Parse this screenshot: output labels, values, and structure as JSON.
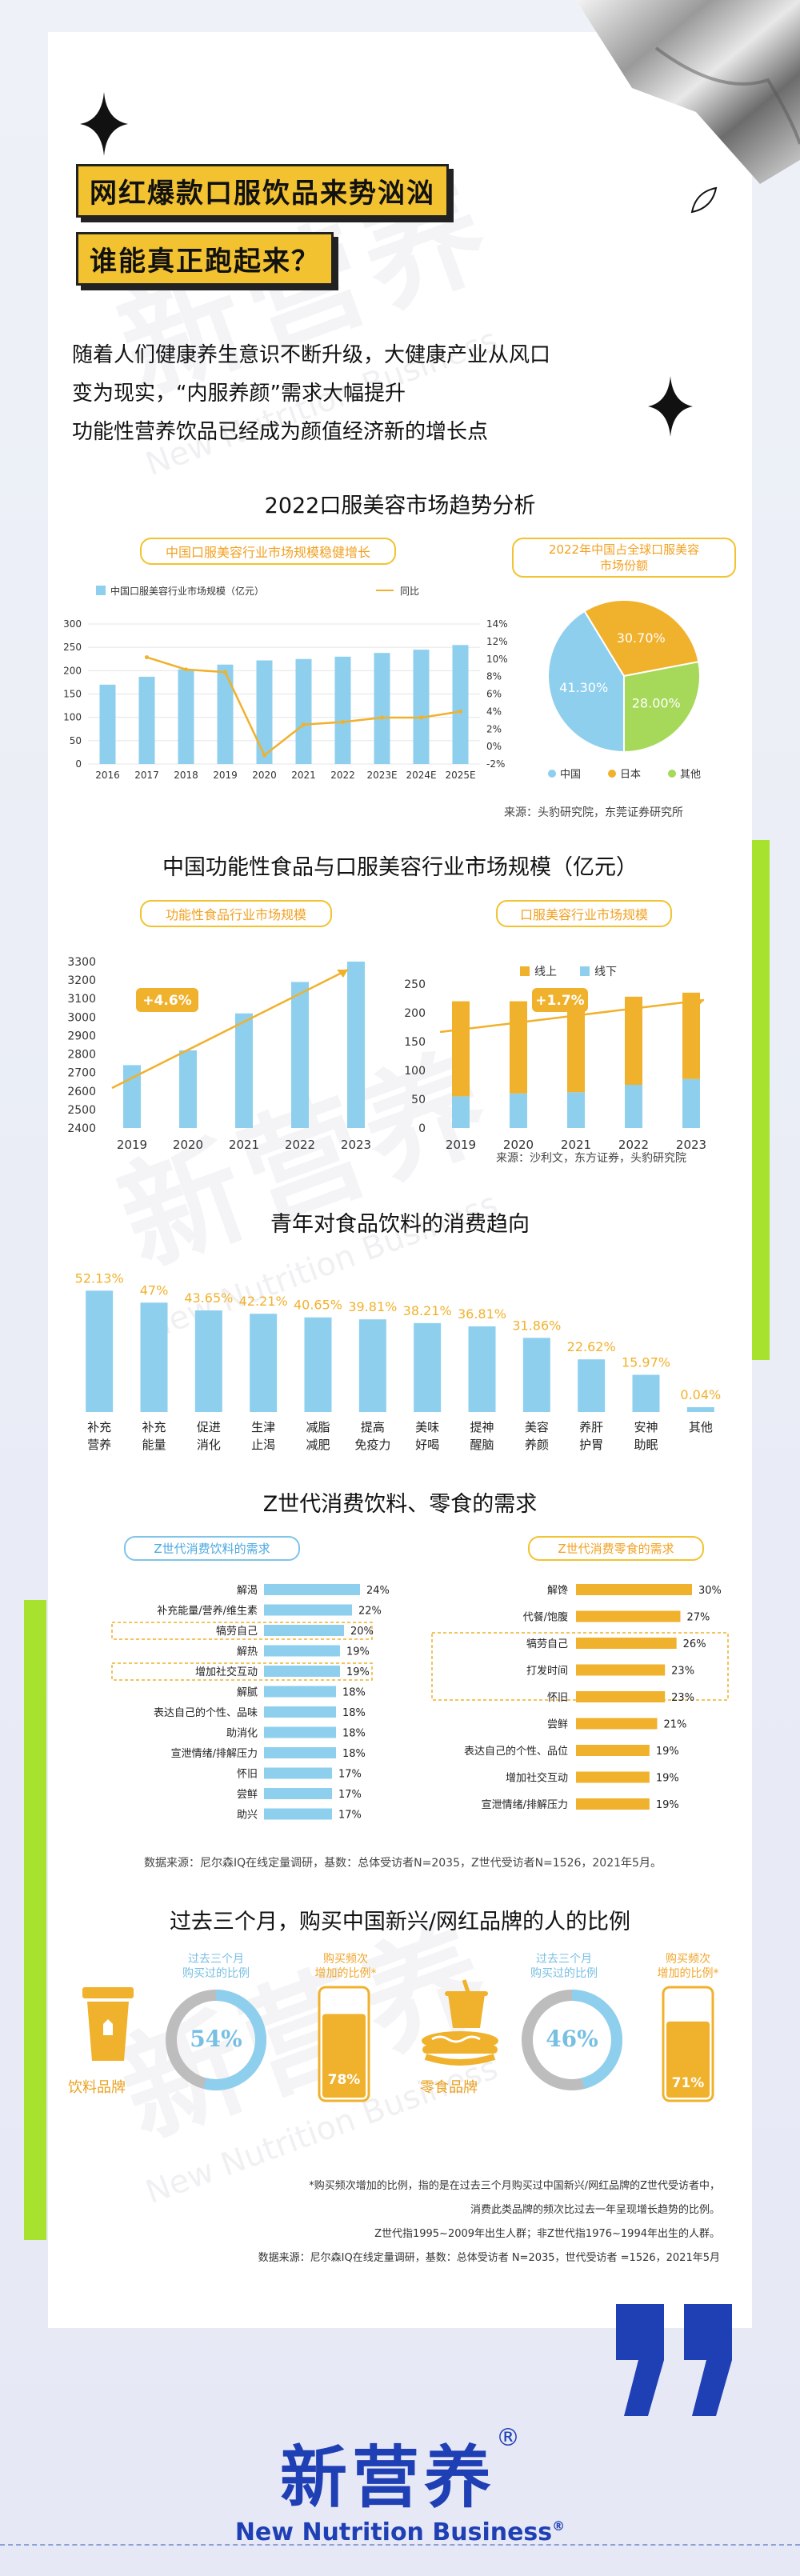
{
  "header": {
    "title_line1": "网红爆款口服饮品来势汹汹",
    "title_line2": "谁能真正跑起来？"
  },
  "intro": {
    "line1": "随着人们健康养生意识不断升级，大健康产业从风口",
    "line2": "变为现实，“内服养颜”需求大幅提升",
    "line3": "功能性营养饮品已经成为颜值经济新的增长点"
  },
  "section1": {
    "title": "2022口服美容市场趋势分析",
    "left_pill": "中国口服美容行业市场规模稳健增长",
    "right_pill_line1": "2022年中国占全球口服美容",
    "right_pill_line2": "市场份额",
    "source": "来源：头豹研究院，东莞证券研究所"
  },
  "section2": {
    "title": "中国功能性食品与口服美容行业市场规模（亿元）",
    "left_pill": "功能性食品行业市场规模",
    "right_pill": "口服美容行业市场规模",
    "left_growth": "+4.6%",
    "right_growth": "+1.7%",
    "source": "来源：沙利文，东方证券，头豹研究院"
  },
  "section3": {
    "title": "青年对食品饮料的消费趋向"
  },
  "section4": {
    "title": "Z世代消费饮料、零食的需求",
    "left_pill": "Z世代消费饮料的需求",
    "right_pill": "Z世代消费零食的需求",
    "source": "数据来源：尼尔森IQ在线定量调研，基数：总体受访者N=2035，Z世代受访者N=1526，2021年5月。"
  },
  "section5": {
    "title": "过去三个月，购买中国新兴/网红品牌的人的比例",
    "drink_label": "饮料品牌",
    "snack_label": "零食品牌",
    "bought_label_line1": "过去三个月",
    "bought_label_line2": "购买过的比例",
    "freq_label_line1": "购买频次",
    "freq_label_line2": "增加的比例*",
    "drink_bought": "54%",
    "drink_freq": "78%",
    "snack_bought": "46%",
    "snack_freq": "71%",
    "drink_bought_value": 54,
    "drink_freq_value": 78,
    "snack_bought_value": 46,
    "snack_freq_value": 71,
    "note1": "*购买频次增加的比例，指的是在过去三个月购买过中国新兴/网红品牌的Z世代受访者中，",
    "note2": "消费此类品牌的频次比过去一年呈现增长趋势的比例。",
    "note3": "Z世代指1995~2009年出生人群；非Z世代指1976~1994年出生的人群。",
    "note4": "数据来源：尼尔森IQ在线定量调研，基数：总体受访者 N=2035，世代受访者 =1526，2021年5月"
  },
  "brand": {
    "name": "新营养",
    "reg": "®",
    "en": "New Nutrition Business",
    "en_reg": "®",
    "watermark": "新营养",
    "watermark_en": "New Nutrition Business"
  },
  "colors": {
    "blue": "#8ecfee",
    "orange": "#f0b12c",
    "green": "#a6e22e",
    "gold_line": "#f0b12c",
    "brand_blue": "#1f3fb4"
  },
  "chart_data": [
    {
      "type": "bar",
      "title": "",
      "legend": [
        "中国口服美容行业市场规模（亿元）",
        "同比"
      ],
      "categories": [
        "2016",
        "2017",
        "2018",
        "2019",
        "2020",
        "2021",
        "2022",
        "2023E",
        "2024E",
        "2025E"
      ],
      "series": [
        {
          "name": "中国口服美容行业市场规模（亿元）",
          "type": "bar",
          "values": [
            170,
            187,
            203,
            213,
            222,
            225,
            230,
            238,
            245,
            255
          ]
        },
        {
          "name": "同比",
          "type": "line",
          "values": [
            null,
            10.2,
            8.8,
            8.5,
            -1.0,
            2.5,
            2.8,
            3.3,
            3.3,
            4.0
          ]
        }
      ],
      "ylim": [
        0,
        300
      ],
      "y2lim": [
        -2,
        14
      ],
      "yticks": [
        "300",
        "250",
        "200",
        "150",
        "100",
        "50",
        "0"
      ],
      "y2ticks": [
        "14%",
        "12%",
        "10%",
        "8%",
        "6%",
        "4%",
        "2%",
        "0%",
        "-2%"
      ]
    },
    {
      "type": "pie",
      "title": "2022年中国占全球口服美容市场份额",
      "labels": [
        "中国",
        "日本",
        "其他"
      ],
      "values": [
        41.3,
        30.7,
        28.0
      ],
      "value_labels": [
        "41.30%",
        "30.70%",
        "28.00%"
      ],
      "colors": [
        "#8ecfee",
        "#f0b12c",
        "#a6d85a"
      ]
    },
    {
      "type": "bar",
      "title": "功能性食品行业市场规模",
      "categories": [
        "2019",
        "2020",
        "2021",
        "2022",
        "2023"
      ],
      "values": [
        2740,
        2820,
        3020,
        3190,
        3300
      ],
      "ylim": [
        2400,
        3300
      ],
      "yticks": [
        "3300",
        "3200",
        "3100",
        "3000",
        "2900",
        "2800",
        "2700",
        "2600",
        "2500",
        "2400"
      ]
    },
    {
      "type": "bar",
      "title": "口服美容行业市场规模",
      "categories": [
        "2019",
        "2020",
        "2021",
        "2022",
        "2023"
      ],
      "legend": [
        "线上",
        "线下"
      ],
      "series": [
        {
          "name": "线下",
          "values": [
            55,
            60,
            62,
            75,
            85
          ]
        },
        {
          "name": "线上",
          "values": [
            165,
            160,
            165,
            153,
            150
          ]
        }
      ],
      "ylim": [
        0,
        250
      ],
      "yticks": [
        "250",
        "200",
        "150",
        "100",
        "50",
        "0"
      ]
    },
    {
      "type": "bar",
      "title": "青年对食品饮料的消费趋向",
      "categories": [
        "补充营养",
        "补充能量",
        "促进消化",
        "生津止渴",
        "减脂减肥",
        "提高免疫力",
        "美味好喝",
        "提神醒脑",
        "美容养颜",
        "养肝护胃",
        "安神助眠",
        "其他"
      ],
      "values": [
        52.13,
        47,
        43.65,
        42.21,
        40.65,
        39.81,
        38.21,
        36.81,
        31.86,
        22.62,
        15.97,
        0.04
      ],
      "value_labels": [
        "52.13%",
        "47%",
        "43.65%",
        "42.21%",
        "40.65%",
        "39.81%",
        "38.21%",
        "36.81%",
        "31.86%",
        "22.62%",
        "15.97%",
        "0.04%"
      ]
    },
    {
      "type": "bar",
      "title": "Z世代消费饮料的需求",
      "categories": [
        "解渴",
        "补充能量/营养/维生素",
        "犒劳自己",
        "解热",
        "增加社交互动",
        "解腻",
        "表达自己的个性、品味",
        "助消化",
        "宣泄情绪/排解压力",
        "怀旧",
        "尝鲜",
        "助兴"
      ],
      "values": [
        24,
        22,
        20,
        19,
        19,
        18,
        18,
        18,
        18,
        17,
        17,
        17
      ],
      "value_labels": [
        "24%",
        "22%",
        "20%",
        "19%",
        "19%",
        "18%",
        "18%",
        "18%",
        "18%",
        "17%",
        "17%",
        "17%"
      ]
    },
    {
      "type": "bar",
      "title": "Z世代消费零食的需求",
      "categories": [
        "解馋",
        "代餐/饱腹",
        "犒劳自己",
        "打发时间",
        "怀旧",
        "尝鲜",
        "表达自己的个性、品位",
        "增加社交互动",
        "宣泄情绪/排解压力"
      ],
      "values": [
        30,
        27,
        26,
        23,
        23,
        21,
        19,
        19,
        19
      ],
      "value_labels": [
        "30%",
        "27%",
        "26%",
        "23%",
        "23%",
        "21%",
        "19%",
        "19%",
        "19%"
      ]
    }
  ]
}
